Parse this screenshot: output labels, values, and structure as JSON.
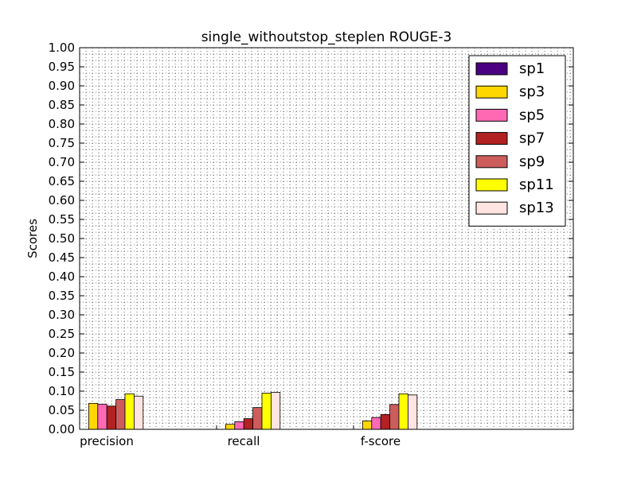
{
  "chart_data": {
    "type": "bar",
    "title": "single_withoutstop_steplen ROUGE-3",
    "xlabel": "",
    "ylabel": "Scores",
    "categories": [
      "precision",
      "recall",
      "f-score"
    ],
    "ylim": [
      0,
      1.0
    ],
    "yticks": [
      "0.00",
      "0.05",
      "0.10",
      "0.15",
      "0.20",
      "0.25",
      "0.30",
      "0.35",
      "0.40",
      "0.45",
      "0.50",
      "0.55",
      "0.60",
      "0.65",
      "0.70",
      "0.75",
      "0.80",
      "0.85",
      "0.90",
      "0.95",
      "1.00"
    ],
    "grid": true,
    "legend_position": "top-right",
    "series": [
      {
        "name": "sp1",
        "color": "#4B0082",
        "values": [
          0.0,
          0.0,
          0.0
        ]
      },
      {
        "name": "sp3",
        "color": "#FFD700",
        "values": [
          0.068,
          0.013,
          0.022
        ]
      },
      {
        "name": "sp5",
        "color": "#FF69B4",
        "values": [
          0.066,
          0.02,
          0.031
        ]
      },
      {
        "name": "sp7",
        "color": "#B22222",
        "values": [
          0.061,
          0.028,
          0.039
        ]
      },
      {
        "name": "sp9",
        "color": "#CD5C5C",
        "values": [
          0.078,
          0.057,
          0.065
        ]
      },
      {
        "name": "sp11",
        "color": "#FFFF00",
        "values": [
          0.093,
          0.095,
          0.093
        ]
      },
      {
        "name": "sp13",
        "color": "#FFE4E1",
        "values": [
          0.087,
          0.097,
          0.09
        ]
      }
    ]
  }
}
